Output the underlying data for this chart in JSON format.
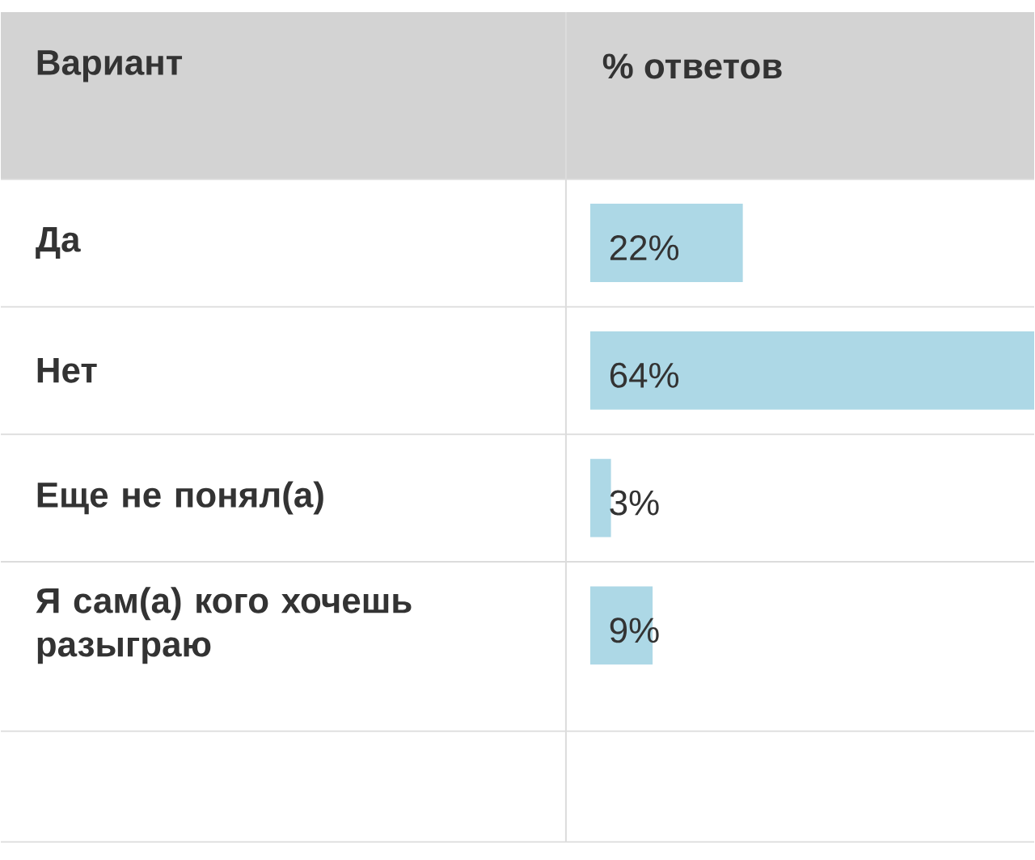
{
  "chart_data": {
    "type": "bar",
    "orientation": "horizontal",
    "ylabel": "Вариант",
    "xlabel": "% ответов",
    "categories": [
      "Да",
      "Нет",
      "Еще не понял(а)",
      "Я сам(а) кого хочешь разыграю"
    ],
    "values": [
      22,
      64,
      3,
      9
    ],
    "value_labels": [
      "22%",
      "64%",
      "3%",
      "9%"
    ],
    "color": "#add8e6",
    "xlim": [
      0,
      64
    ]
  }
}
